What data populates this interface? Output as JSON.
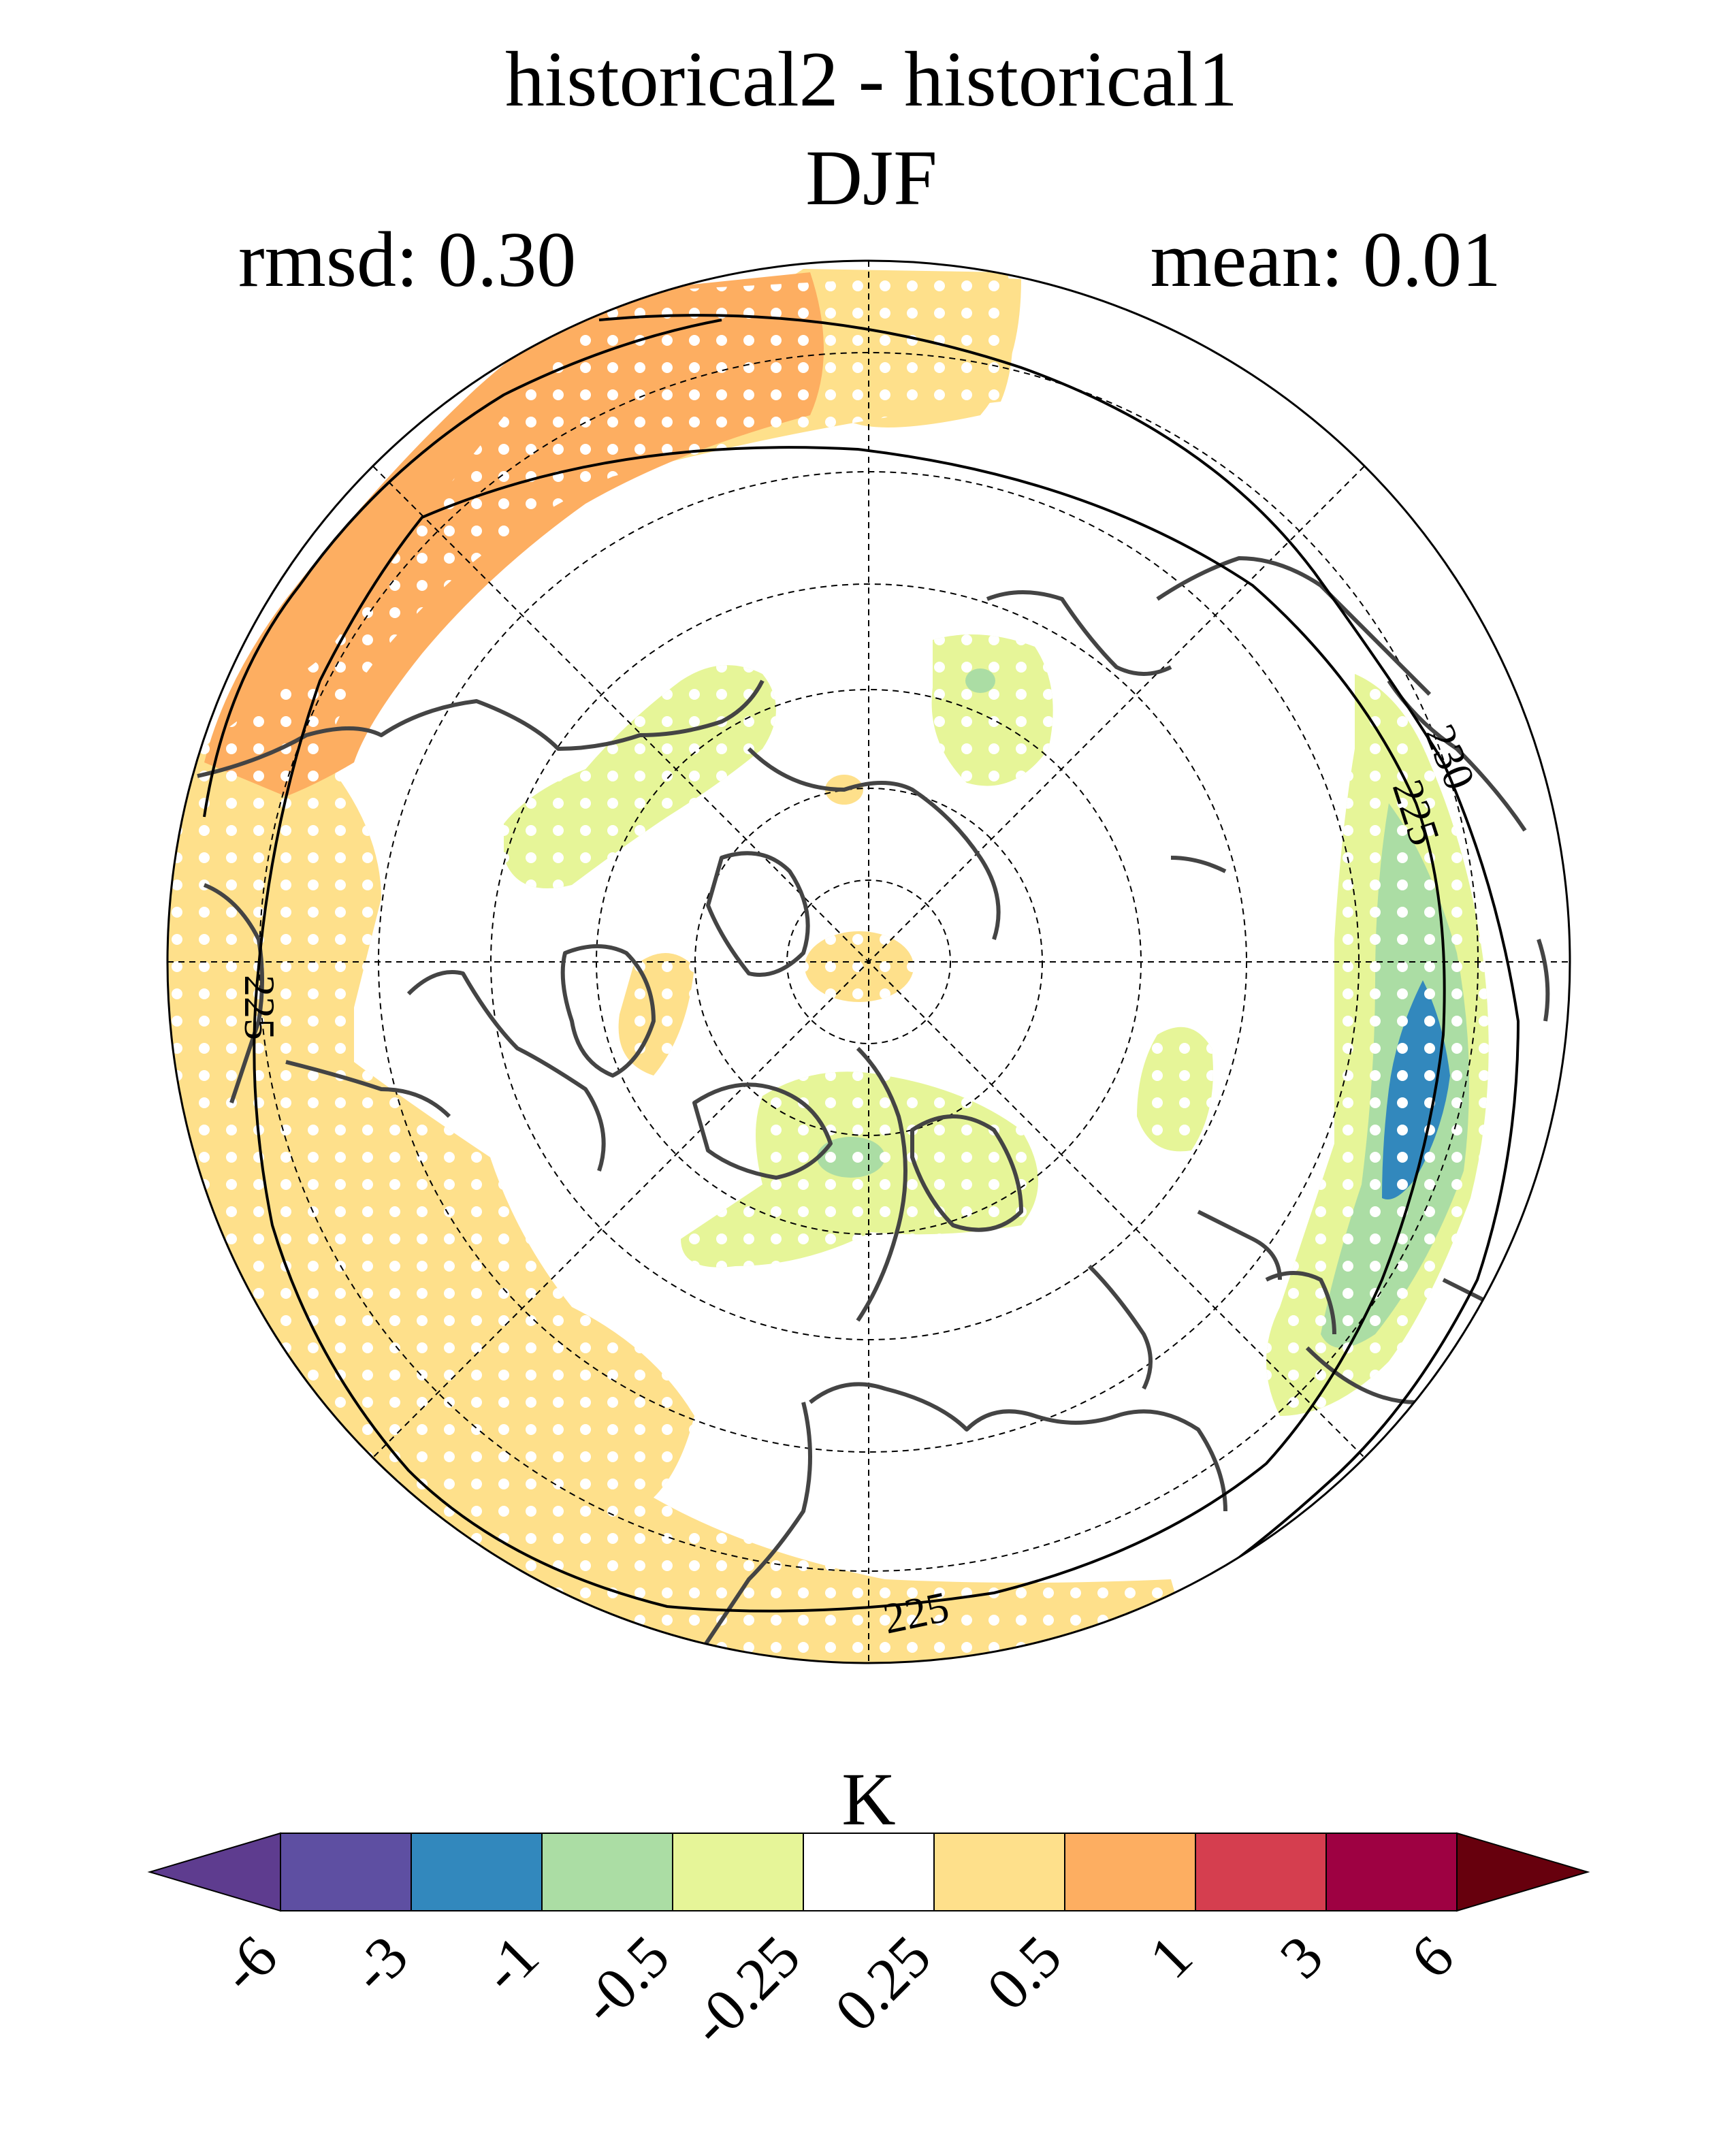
{
  "title": "historical2 - historical1",
  "season": "DJF",
  "stats": {
    "rmsd": "rmsd: 0.30",
    "mean": "mean: 0.01"
  },
  "contours": [
    {
      "label": "230"
    },
    {
      "label": "225"
    },
    {
      "label": "225"
    },
    {
      "label": "225"
    }
  ],
  "colorbar": {
    "unit": "K",
    "levels": [
      "-6",
      "-3",
      "-1",
      "-0.5",
      "-0.25",
      "0.25",
      "0.5",
      "1",
      "3",
      "6"
    ],
    "colors": [
      "#5e3c8f",
      "#5e4fa2",
      "#3288bd",
      "#abdda4",
      "#e6f598",
      "#ffffff",
      "#fee08b",
      "#fdae61",
      "#d53e4f",
      "#9e0142",
      "#67000d"
    ]
  }
}
